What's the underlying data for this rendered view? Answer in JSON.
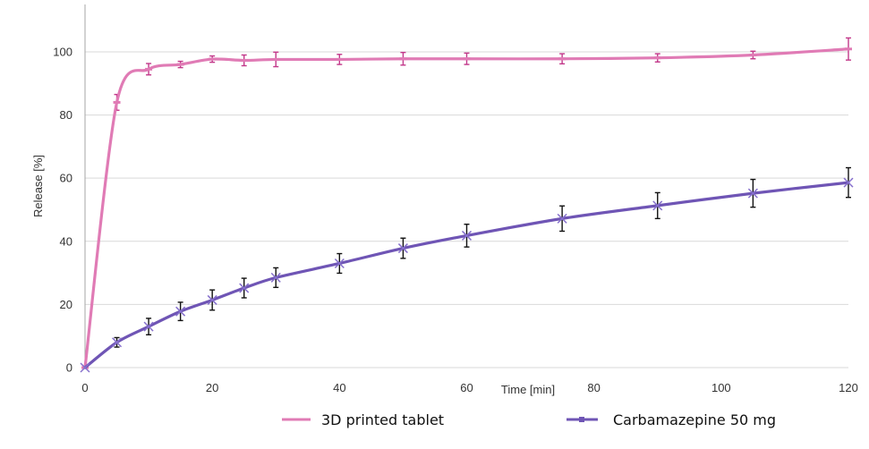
{
  "chart_data": {
    "type": "line",
    "title": "",
    "xlabel": "Time [min]",
    "ylabel": "Release [%]",
    "xlim": [
      0,
      120
    ],
    "ylim": [
      0,
      115
    ],
    "x_ticks": [
      0,
      20,
      40,
      60,
      80,
      100,
      120
    ],
    "y_ticks": [
      0,
      20,
      40,
      60,
      80,
      100
    ],
    "grid": "horizontal",
    "legend_position": "bottom",
    "series": [
      {
        "name": "3D printed tablet",
        "color": "#e07bb5",
        "marker": "dash",
        "x": [
          0,
          5,
          10,
          15,
          20,
          25,
          30,
          40,
          50,
          60,
          75,
          90,
          105,
          120
        ],
        "y": [
          0,
          84,
          94.5,
          96,
          97.7,
          97.3,
          97.6,
          97.6,
          97.8,
          97.8,
          97.8,
          98.1,
          99,
          100.9
        ],
        "error": [
          0,
          2.5,
          1.8,
          1,
          1,
          1.7,
          2.3,
          1.6,
          2,
          1.8,
          1.6,
          1.3,
          1.2,
          3.5
        ],
        "error_color": "#c2388a"
      },
      {
        "name": "Carbamazepine 50 mg",
        "color": "#6f55b5",
        "marker": "x",
        "x": [
          0,
          5,
          10,
          15,
          20,
          25,
          30,
          40,
          50,
          60,
          75,
          90,
          105,
          120
        ],
        "y": [
          0,
          8,
          13,
          17.8,
          21.4,
          25.2,
          28.5,
          33,
          37.8,
          41.8,
          47.2,
          51.3,
          55.2,
          58.6
        ],
        "error": [
          0,
          1.5,
          2.6,
          2.9,
          3.2,
          3.1,
          3.1,
          3.1,
          3.2,
          3.6,
          4,
          4.1,
          4.4,
          4.7
        ],
        "error_color": "#111111"
      }
    ]
  }
}
